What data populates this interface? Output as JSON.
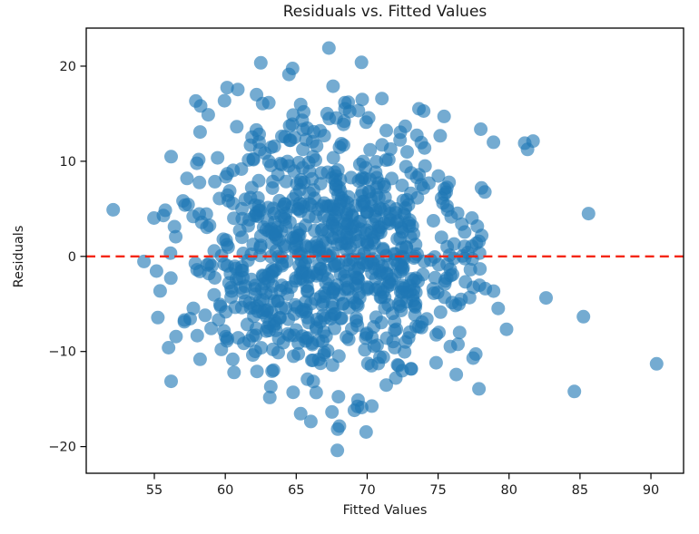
{
  "chart_data": {
    "type": "scatter",
    "title": "Residuals vs. Fitted Values",
    "xlabel": "Fitted Values",
    "ylabel": "Residuals",
    "xlim": [
      50.2,
      92.3
    ],
    "ylim": [
      -22.8,
      24.0
    ],
    "xticks": [
      55,
      60,
      65,
      70,
      75,
      80,
      85,
      90
    ],
    "xtick_labels": [
      "55",
      "60",
      "65",
      "70",
      "75",
      "80",
      "85",
      "90"
    ],
    "yticks": [
      -20,
      -10,
      0,
      10,
      20
    ],
    "ytick_labels": [
      "−20",
      "−10",
      "0",
      "10",
      "20"
    ],
    "grid": false,
    "legend": null,
    "background_color": "#ffffff",
    "axis_color": "#000000",
    "text_color": "#1c1c1c",
    "marker": {
      "color": "#1f77b4",
      "alpha": 0.62,
      "radius": 7.5
    },
    "reference_line": {
      "y": 0,
      "color": "#f42613",
      "style": "dashed",
      "width": 2.4,
      "dash": "10 6.2"
    },
    "points_cloud": {
      "distribution": "gaussian",
      "seed": 42,
      "n": 900,
      "x_mean": 67.6,
      "x_sd": 5.2,
      "y_mean": 0.0,
      "y_sd": 7.3,
      "x_range": [
        54.2,
        87.0
      ],
      "y_range": [
        -19.6,
        20.8
      ]
    },
    "notable_points": [
      [
        52.1,
        4.9
      ],
      [
        90.4,
        -11.3
      ],
      [
        85.6,
        4.5
      ],
      [
        67.3,
        21.9
      ],
      [
        69.6,
        20.4
      ],
      [
        67.9,
        -20.4
      ],
      [
        78.9,
        12.0
      ],
      [
        81.1,
        11.9
      ],
      [
        56.0,
        -9.6
      ],
      [
        57.3,
        8.2
      ],
      [
        84.6,
        -14.2
      ],
      [
        62.2,
        17.0
      ]
    ]
  }
}
